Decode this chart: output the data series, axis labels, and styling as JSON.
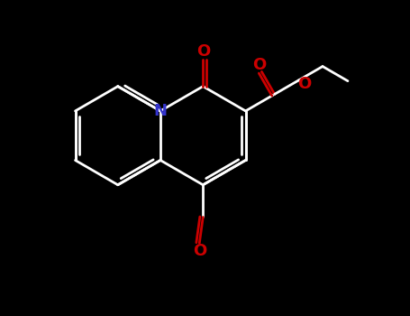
{
  "bg_color": "#000000",
  "bond_color": "#ffffff",
  "N_color": "#3333cc",
  "O_color": "#cc0000",
  "line_width": 2.0,
  "figsize": [
    4.55,
    3.5
  ],
  "dpi": 100,
  "xlim": [
    0,
    9.1
  ],
  "ylim": [
    0,
    7.0
  ]
}
